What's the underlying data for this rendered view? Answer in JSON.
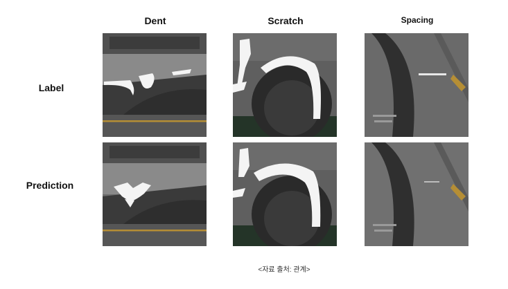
{
  "columns": [
    "Dent",
    "Scratch",
    "Spacing"
  ],
  "rows": [
    "Label",
    "Prediction"
  ],
  "caption": "<자료 출처: 관계>"
}
